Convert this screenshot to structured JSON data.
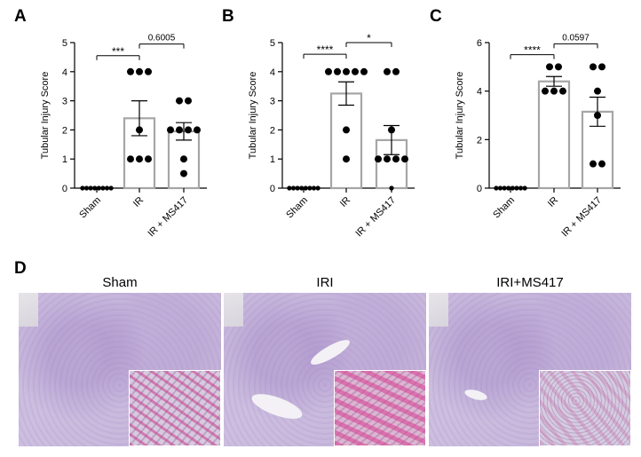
{
  "panels": {
    "a": "A",
    "b": "B",
    "c": "C",
    "d": "D"
  },
  "chart_data": [
    {
      "type": "bar",
      "panel": "A",
      "categories": [
        "Sham",
        "IR",
        "IR + MS417"
      ],
      "ylabel": "Tubular Injury Score",
      "ylim": [
        0,
        5
      ],
      "yticks": [
        0,
        1,
        2,
        3,
        4,
        5
      ],
      "values": [
        0,
        2.4,
        1.95
      ],
      "error_sem": [
        0,
        0.6,
        0.3
      ],
      "points": [
        [
          0,
          0,
          0,
          0,
          0,
          0,
          0,
          0
        ],
        [
          4,
          4,
          4,
          2,
          1,
          1,
          1
        ],
        [
          3,
          3,
          2,
          2,
          2,
          2,
          1,
          0.5
        ]
      ],
      "comparisons": [
        {
          "from": 0,
          "to": 1,
          "label": "***",
          "y": 4.55
        },
        {
          "from": 1,
          "to": 2,
          "label": "0.6005",
          "y": 4.95
        }
      ]
    },
    {
      "type": "bar",
      "panel": "B",
      "categories": [
        "Sham",
        "IR",
        "IR + MS417"
      ],
      "ylabel": "Tubular Injury Score",
      "ylim": [
        0,
        5
      ],
      "yticks": [
        0,
        1,
        2,
        3,
        4,
        5
      ],
      "values": [
        0,
        3.25,
        1.65
      ],
      "error_sem": [
        0,
        0.4,
        0.5
      ],
      "points": [
        [
          0,
          0,
          0,
          0,
          0,
          0,
          0,
          0
        ],
        [
          4,
          4,
          4,
          4,
          4,
          2,
          1
        ],
        [
          4,
          4,
          2,
          1,
          1,
          1,
          1,
          0
        ]
      ],
      "comparisons": [
        {
          "from": 0,
          "to": 1,
          "label": "****",
          "y": 4.6
        },
        {
          "from": 1,
          "to": 2,
          "label": "*",
          "y": 5.0
        }
      ]
    },
    {
      "type": "bar",
      "panel": "C",
      "categories": [
        "Sham",
        "IR",
        "IR + MS417"
      ],
      "ylabel": "Tubular Injury Score",
      "ylim": [
        0,
        6
      ],
      "yticks": [
        0,
        2,
        4,
        6
      ],
      "values": [
        0,
        4.4,
        3.15
      ],
      "error_sem": [
        0,
        0.2,
        0.6
      ],
      "points": [
        [
          0,
          0,
          0,
          0,
          0,
          0,
          0,
          0
        ],
        [
          5,
          5,
          4,
          4,
          4
        ],
        [
          5,
          5,
          4,
          3,
          1,
          1
        ]
      ],
      "comparisons": [
        {
          "from": 0,
          "to": 1,
          "label": "****",
          "y": 5.5
        },
        {
          "from": 1,
          "to": 2,
          "label": "0.0597",
          "y": 5.95
        }
      ]
    }
  ],
  "histology": {
    "titles": [
      "Sham",
      "IRI",
      "IRI+MS417"
    ]
  }
}
